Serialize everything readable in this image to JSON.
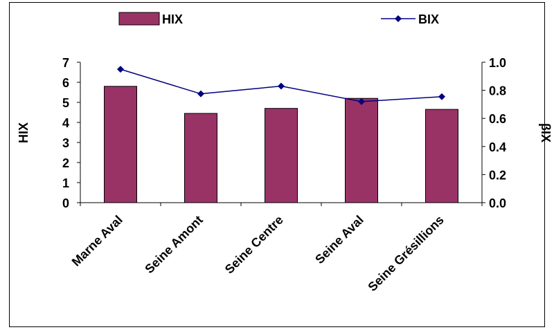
{
  "chart_data": {
    "type": "bar",
    "categories": [
      "Marne Aval",
      "Seine Amont",
      "Seine Centre",
      "Seine Aval",
      "Seine Grésillions"
    ],
    "series": [
      {
        "name": "HIX",
        "type": "bar",
        "axis": "left",
        "color": "#993366",
        "values": [
          5.8,
          4.45,
          4.7,
          5.2,
          4.65
        ]
      },
      {
        "name": "BIX",
        "type": "line",
        "axis": "right",
        "color": "#000080",
        "values": [
          0.95,
          0.775,
          0.83,
          0.72,
          0.755
        ]
      }
    ],
    "ylabel": "HIX",
    "y2label": "βIX",
    "ylim": [
      0,
      7
    ],
    "y2lim": [
      0,
      1.0
    ],
    "yticks": [
      "0",
      "1",
      "2",
      "3",
      "4",
      "5",
      "6",
      "7"
    ],
    "y2ticks": [
      "0.0",
      "0.2",
      "0.4",
      "0.6",
      "0.8",
      "1.0"
    ],
    "grid": false,
    "legend_position": "top"
  }
}
